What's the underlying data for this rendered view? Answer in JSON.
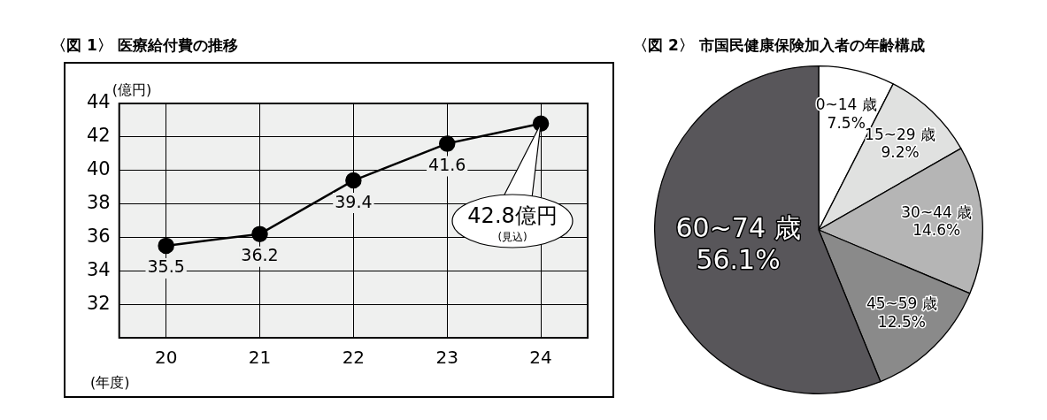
{
  "chart_data": [
    {
      "type": "line",
      "title": "〈図 1〉 医療給付費の推移",
      "xlabel": "(年度)",
      "ylabel": "(億円)",
      "categories": [
        "20",
        "21",
        "22",
        "23",
        "24"
      ],
      "series": [
        {
          "color": "#000000",
          "values": [
            35.5,
            36.2,
            39.4,
            41.6,
            42.8
          ],
          "value_labels": [
            "35.5",
            "36.2",
            "39.4",
            "41.6",
            null
          ]
        }
      ],
      "ylim": [
        30,
        44
      ],
      "yticks": [
        32,
        34,
        36,
        38,
        40,
        42,
        44
      ],
      "grid": true,
      "marker": "circle",
      "line_style": "solid",
      "legend": false,
      "annotations": [
        "42.8億円",
        "(見込)"
      ]
    },
    {
      "type": "pie",
      "title": "〈図 2〉 市国民健康保険加入者の年齢構成",
      "categories": [
        "0~14 歳",
        "15~29 歳",
        "30~44 歳",
        "45~59 歳",
        "60~74 歳"
      ],
      "values": [
        7.5,
        9.2,
        14.6,
        12.5,
        56.1
      ],
      "value_labels": [
        "7.5%",
        "9.2%",
        "14.6%",
        "12.5%",
        "56.1%"
      ],
      "colors": [
        "#ffffff",
        "#e0e1e0",
        "#b5b5b5",
        "#8a8a8a",
        "#58565a"
      ],
      "legend": false
    }
  ]
}
